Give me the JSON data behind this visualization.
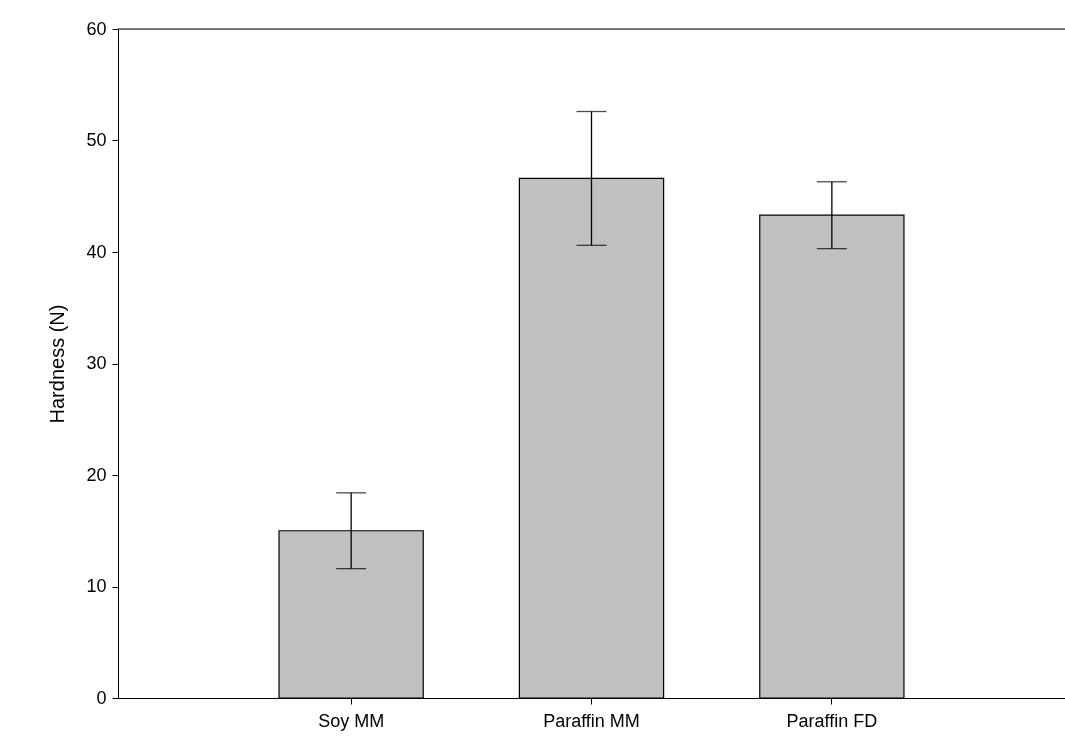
{
  "chart_data": {
    "type": "bar",
    "ylabel": "Hardness (N)",
    "categories": [
      "Soy MM",
      "Paraffin MM",
      "Paraffin FD"
    ],
    "values": [
      15.0,
      46.6,
      43.3
    ],
    "errors": [
      3.4,
      6.0,
      3.0
    ],
    "color": "#c0c0c0",
    "ylim": [
      0,
      60
    ],
    "yticks": [
      0,
      10,
      20,
      30,
      40,
      50,
      60
    ],
    "grid": false
  }
}
